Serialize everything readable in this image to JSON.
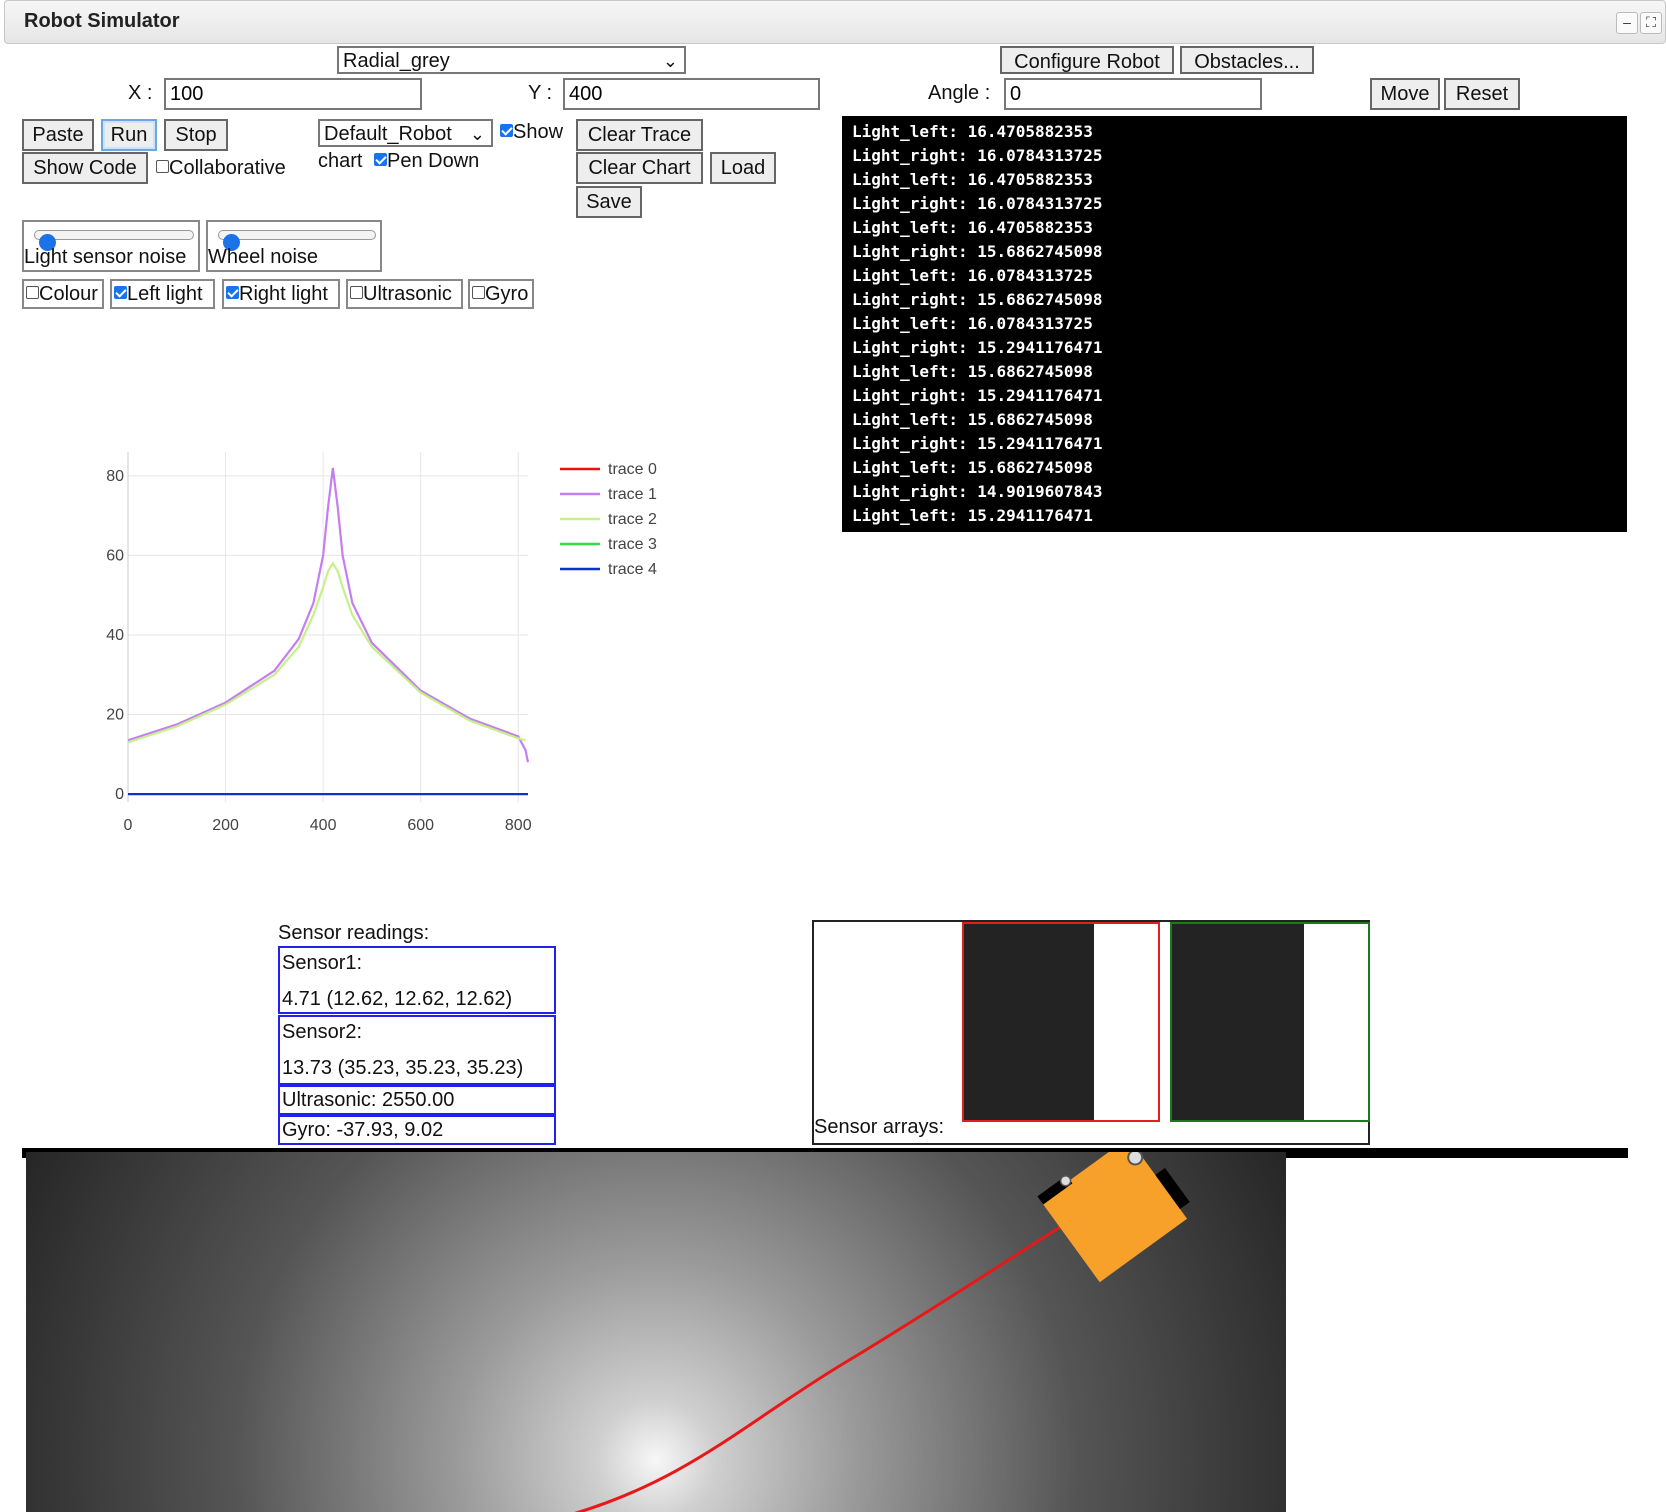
{
  "window": {
    "title": "Robot Simulator",
    "minimize_glyph": "–",
    "expand_glyph": "⛶"
  },
  "controls": {
    "background_select": "Radial_grey",
    "x_label": "X :",
    "x_value": "100",
    "y_label": "Y :",
    "y_value": "400",
    "angle_label": "Angle :",
    "angle_value": "0",
    "configure_robot": "Configure Robot",
    "obstacles": "Obstacles...",
    "move": "Move",
    "reset": "Reset",
    "paste": "Paste",
    "run": "Run",
    "stop": "Stop",
    "show_code": "Show Code",
    "collaborative": "Collaborative",
    "robot_select": "Default_Robot",
    "show_chart_a": "Show",
    "show_chart_b": "chart",
    "pen_down": "Pen Down",
    "clear_trace": "Clear Trace",
    "clear_chart": "Clear Chart",
    "load": "Load",
    "save": "Save",
    "light_sensor_noise": "Light sensor noise",
    "wheel_noise": "Wheel noise",
    "light_sensor_noise_level": 0,
    "wheel_noise_level": 0,
    "colour": "Colour",
    "left_light": "Left light",
    "right_light": "Right light",
    "ultrasonic": "Ultrasonic",
    "gyro": "Gyro"
  },
  "console_lines": [
    "Light_left: 16.4705882353",
    "Light_right: 16.0784313725",
    "Light_left: 16.4705882353",
    "Light_right: 16.0784313725",
    "Light_left: 16.4705882353",
    "Light_right: 15.6862745098",
    "Light_left: 16.0784313725",
    "Light_right: 15.6862745098",
    "Light_left: 16.0784313725",
    "Light_right: 15.2941176471",
    "Light_left: 15.6862745098",
    "Light_right: 15.2941176471",
    "Light_left: 15.6862745098",
    "Light_right: 15.2941176471",
    "Light_left: 15.6862745098",
    "Light_right: 14.9019607843",
    "Light_left: 15.2941176471"
  ],
  "chart_data": {
    "type": "line",
    "title": "",
    "xlabel": "",
    "ylabel": "",
    "xlim": [
      0,
      820
    ],
    "ylim": [
      -2,
      86
    ],
    "xticks": [
      0,
      200,
      400,
      600,
      800
    ],
    "yticks": [
      0,
      20,
      40,
      60,
      80
    ],
    "legend_position": "top-right",
    "series": [
      {
        "name": "trace 0",
        "color": "#ee1111",
        "x": [
          0,
          820
        ],
        "y": [
          0,
          0
        ]
      },
      {
        "name": "trace 1",
        "color": "#c57ef0",
        "x": [
          0,
          100,
          200,
          300,
          350,
          380,
          400,
          410,
          420,
          430,
          440,
          460,
          500,
          600,
          700,
          800,
          815,
          820
        ],
        "y": [
          13.5,
          17.5,
          23,
          31,
          39,
          48,
          60,
          72,
          82,
          72,
          60,
          48,
          38,
          26,
          19,
          14.5,
          11,
          8
        ]
      },
      {
        "name": "trace 2",
        "color": "#c6f08a",
        "x": [
          0,
          100,
          200,
          300,
          350,
          380,
          400,
          410,
          420,
          430,
          440,
          460,
          500,
          600,
          700,
          800,
          815
        ],
        "y": [
          13,
          17,
          22.5,
          30,
          37,
          45,
          52,
          56,
          58,
          56,
          52,
          45,
          37,
          25.5,
          18.5,
          14,
          13.5
        ]
      },
      {
        "name": "trace 3",
        "color": "#33dd44",
        "x": [
          0,
          820
        ],
        "y": [
          0,
          0
        ]
      },
      {
        "name": "trace 4",
        "color": "#1030cc",
        "x": [
          0,
          820
        ],
        "y": [
          0,
          0
        ]
      }
    ]
  },
  "sensors": {
    "heading": "Sensor readings:",
    "sensor1_label": "Sensor1:",
    "sensor1_value": "4.71 (12.62, 12.62, 12.62)",
    "sensor2_label": "Sensor2:",
    "sensor2_value": "13.73 (35.23, 35.23, 35.23)",
    "ultrasonic": "Ultrasonic: 2550.00",
    "gyro": "Gyro: -37.93, 9.02",
    "arrays_label": "Sensor arrays:"
  },
  "colors": {
    "robot_body": "#f7a12b",
    "trace_line": "#e81818",
    "array_left_border": "#e02020",
    "array_right_border": "#1c7a1c"
  }
}
